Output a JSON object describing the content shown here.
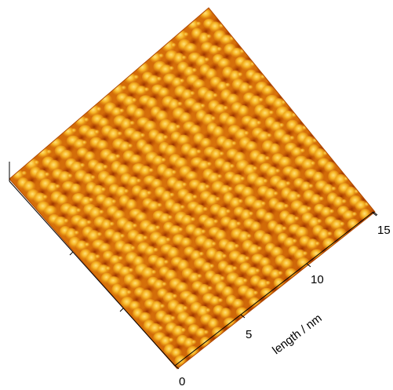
{
  "image": {
    "kind": "3D AFM/STM surface topography render",
    "palette": {
      "deep": "#a83a00",
      "mid": "#df7d0a",
      "high": "#f5b21f",
      "peak": "#ffe27a"
    }
  },
  "axis": {
    "ticks": [
      "0",
      "5",
      "10",
      "15"
    ],
    "title": "length / nm"
  }
}
